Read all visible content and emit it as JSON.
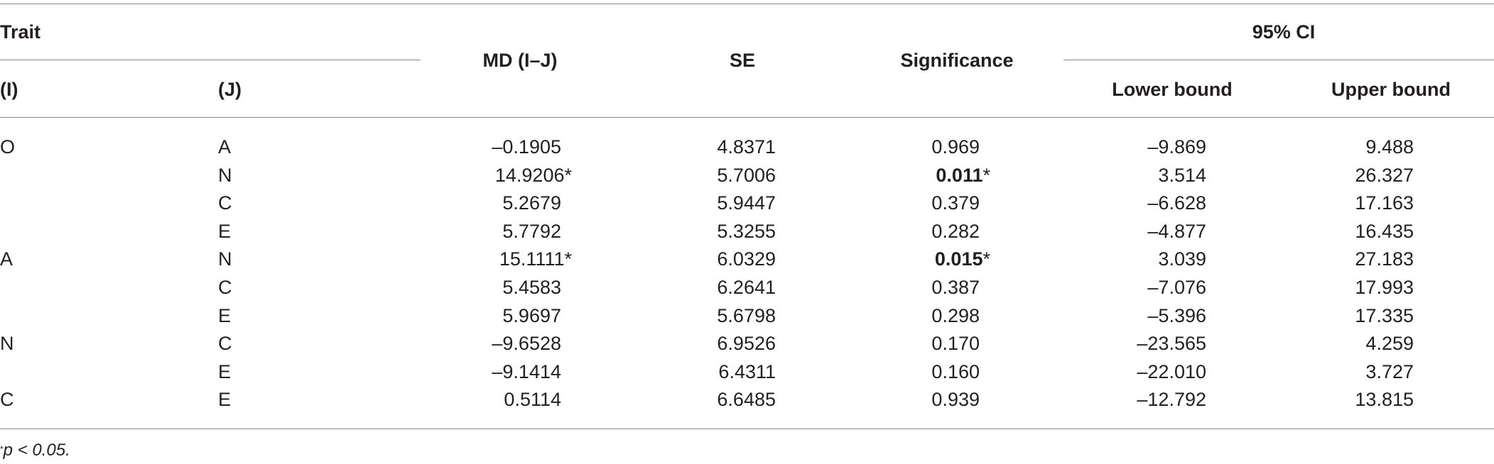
{
  "headers": {
    "trait": "Trait",
    "i": "(I)",
    "j": "(J)",
    "md": "MD (I–J)",
    "se": "SE",
    "significance": "Significance",
    "ci": "95% CI",
    "lower": "Lower bound",
    "upper": "Upper bound"
  },
  "rows": [
    {
      "i": "O",
      "j": "A",
      "md": "–0.1905",
      "md_star": "",
      "se": "4.8371",
      "sig": "0.969",
      "sig_star": "",
      "sig_bold": false,
      "lower": "–9.869",
      "upper": "9.488"
    },
    {
      "i": "",
      "j": "N",
      "md": "14.9206",
      "md_star": "*",
      "se": "5.7006",
      "sig": "0.011",
      "sig_star": "*",
      "sig_bold": true,
      "lower": "3.514",
      "upper": "26.327"
    },
    {
      "i": "",
      "j": "C",
      "md": "5.2679",
      "md_star": "",
      "se": "5.9447",
      "sig": "0.379",
      "sig_star": "",
      "sig_bold": false,
      "lower": "–6.628",
      "upper": "17.163"
    },
    {
      "i": "",
      "j": "E",
      "md": "5.7792",
      "md_star": "",
      "se": "5.3255",
      "sig": "0.282",
      "sig_star": "",
      "sig_bold": false,
      "lower": "–4.877",
      "upper": "16.435"
    },
    {
      "i": "A",
      "j": "N",
      "md": "15.1111",
      "md_star": "*",
      "se": "6.0329",
      "sig": "0.015",
      "sig_star": "*",
      "sig_bold": true,
      "lower": "3.039",
      "upper": "27.183"
    },
    {
      "i": "",
      "j": "C",
      "md": "5.4583",
      "md_star": "",
      "se": "6.2641",
      "sig": "0.387",
      "sig_star": "",
      "sig_bold": false,
      "lower": "–7.076",
      "upper": "17.993"
    },
    {
      "i": "",
      "j": "E",
      "md": "5.9697",
      "md_star": "",
      "se": "5.6798",
      "sig": "0.298",
      "sig_star": "",
      "sig_bold": false,
      "lower": "–5.396",
      "upper": "17.335"
    },
    {
      "i": "N",
      "j": "C",
      "md": "–9.6528",
      "md_star": "",
      "se": "6.9526",
      "sig": "0.170",
      "sig_star": "",
      "sig_bold": false,
      "lower": "–23.565",
      "upper": "4.259"
    },
    {
      "i": "",
      "j": "E",
      "md": "–9.1414",
      "md_star": "",
      "se": "6.4311",
      "sig": "0.160",
      "sig_star": "",
      "sig_bold": false,
      "lower": "–22.010",
      "upper": "3.727"
    },
    {
      "i": "C",
      "j": "E",
      "md": "0.5114",
      "md_star": "",
      "se": "6.6485",
      "sig": "0.939",
      "sig_star": "",
      "sig_bold": false,
      "lower": "–12.792",
      "upper": "13.815"
    }
  ],
  "footnote": {
    "mark": "*",
    "text": "p < 0.05."
  }
}
